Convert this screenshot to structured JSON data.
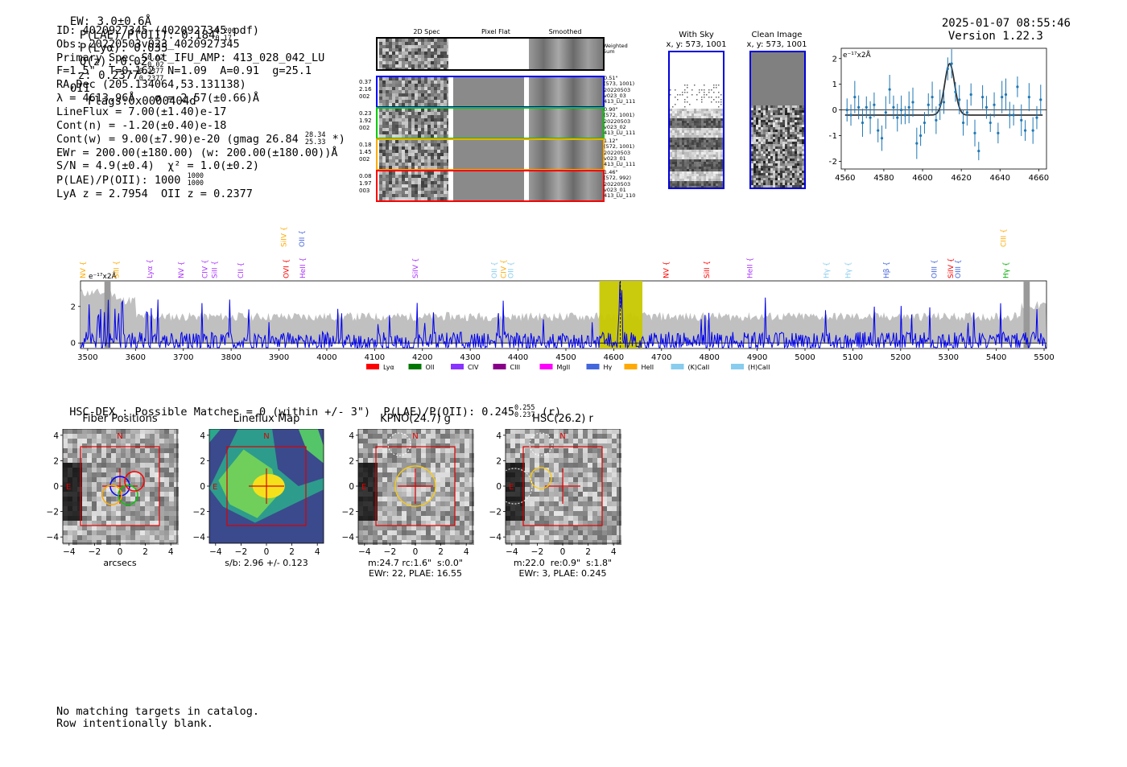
{
  "header": {
    "ew": "EW: 3.0±0.6Å",
    "plae_label": "P(LAE)/P(OII): 0.184",
    "plae_hi": "0.206",
    "plae_lo": "0.17",
    "plya": "P(Lyα): 0.035",
    "q_label": "Q(z): 0.02",
    "q_hi": "0.02",
    "q_lo": "0.02",
    "z_label": "z: 0.2377",
    "z_hi": "0.2377",
    "z_lo": "0.2377",
    "z_type": "OII",
    "flags": "Flags:0x0000404d",
    "timestamp": "2025-01-07 08:55:46",
    "version": "Version 1.22.3"
  },
  "info": {
    "id": "ID: 4020927345 (4020927345.pdf)",
    "obs": "Obs: 20220503v023_4020927345",
    "spec": "Primary Spec_Slot_IFU_AMP: 413_028_042_LU",
    "fiber": "F=1.5\"  T=0.162  N=1.09  A=0.91  g=25.1",
    "radec": "RA,Dec (205.134064,53.131138)",
    "lambda": "λ = 4613.96Å   σ = 2.57(±0.66)Å",
    "lineflux": "LineFlux = 7.00(±1.40)e-17",
    "contn": "Cont(n) = -1.20(±0.40)e-18",
    "contw_prefix": "Cont(w) = 9.00(±7.90)e-20 (gmag 26.84",
    "contw_hi": "28.34",
    "contw_lo": "25.33",
    "contw_suffix": "*)",
    "ewr": "EWr = 200.00(±180.00) (w: 200.00(±180.00))Å",
    "sn": "S/N = 4.9(±0.4)  χ² = 1.0(±0.2)",
    "plae_prefix": "P(LAE)/P(OII): 1000",
    "plae_hi": "1000",
    "plae_lo": "1000",
    "lya_z": "LyA z = 2.7954  OII z = 0.2377"
  },
  "stamps": {
    "col_headers": [
      "2D Spec",
      "Pixel Flat",
      "Smoothed"
    ],
    "weighted_label": "Weighted\nSum",
    "rows": [
      {
        "left": "0.37\n2.16\n002",
        "right": "0.51\"\n(573, 1001)\n20220503\nv023_03\n413_LU_111",
        "color": "#0000ff"
      },
      {
        "left": "0.23\n1.92\n002",
        "right": "0.90\"\n(572, 1001)\n20220503\nv023_02\n413_LU_111",
        "color": "#00cc00"
      },
      {
        "left": "0.18\n1.45\n002",
        "right": "1.12\"\n(572, 1001)\n20220503\nv023_01\n413_LU_111",
        "color": "#ffaa00"
      },
      {
        "left": "0.08\n1.97\n003",
        "right": "1.46\"\n(572, 992)\n20220503\nv023_01\n413_LU_110",
        "color": "#ff0000"
      }
    ]
  },
  "sky_panels": {
    "with_sky": "With Sky\nx, y: 573, 1001",
    "clean": "Clean Image\nx, y: 573, 1001"
  },
  "zoom_plot": {
    "y_unit": "e⁻¹⁷x2Å",
    "xticks": [
      "4560",
      "4580",
      "4600",
      "4620",
      "4640",
      "4660"
    ],
    "yticks": [
      "2",
      "1",
      "0",
      "−1",
      "−2"
    ],
    "x": [
      4561,
      4563,
      4565,
      4567,
      4569,
      4571,
      4573,
      4575,
      4577,
      4579,
      4581,
      4583,
      4585,
      4587,
      4589,
      4591,
      4593,
      4595,
      4597,
      4599,
      4601,
      4603,
      4605,
      4607,
      4609,
      4611,
      4613,
      4615,
      4617,
      4619,
      4621,
      4623,
      4625,
      4627,
      4629,
      4631,
      4633,
      4635,
      4637,
      4639,
      4641,
      4643,
      4645,
      4647,
      4649,
      4651,
      4653,
      4655,
      4657,
      4659,
      4661
    ],
    "y": [
      0.0,
      -0.2,
      0.5,
      0.1,
      -0.5,
      0.1,
      -0.3,
      0.2,
      -0.8,
      -1.1,
      -0.1,
      0.8,
      0.1,
      -0.3,
      0.0,
      -0.2,
      0.1,
      0.3,
      -1.3,
      -1.0,
      -0.5,
      0.2,
      0.5,
      -0.4,
      0.2,
      0.3,
      1.6,
      1.8,
      0.7,
      0.4,
      -0.5,
      -0.1,
      0.6,
      -0.9,
      -1.6,
      0.5,
      0.1,
      -0.5,
      0.2,
      -0.9,
      0.5,
      0.6,
      -0.2,
      -0.2,
      0.9,
      -0.4,
      -0.8,
      0.5,
      -0.8,
      -0.3,
      0.4
    ],
    "fit_center": 4614,
    "fit_sigma": 2.57,
    "fit_amp": 2.0,
    "fit_base": -0.2
  },
  "full_spec": {
    "y_unit": "e⁻¹⁷x2Å",
    "xticks": [
      "3500",
      "3600",
      "3700",
      "3800",
      "3900",
      "4000",
      "4100",
      "4200",
      "4300",
      "4400",
      "4500",
      "4600",
      "4700",
      "4800",
      "4900",
      "5000",
      "5100",
      "5200",
      "5300",
      "5400",
      "5500"
    ],
    "yticks": [
      "2",
      "0"
    ],
    "line_marks": [
      {
        "name": "NV",
        "wave": 3490,
        "color": "#ffaa00"
      },
      {
        "name": "SiII",
        "wave": 3560,
        "color": "#ffaa00"
      },
      {
        "name": "Lyα",
        "wave": 3630,
        "color": "#aa33ff"
      },
      {
        "name": "NV",
        "wave": 3695,
        "color": "#aa33ff"
      },
      {
        "name": "CIV",
        "wave": 3745,
        "color": "#aa33ff"
      },
      {
        "name": "SiII",
        "wave": 3765,
        "color": "#aa33ff"
      },
      {
        "name": "CII",
        "wave": 3820,
        "color": "#aa33ff"
      },
      {
        "name": "OVI",
        "wave": 3915,
        "color": "#ff0000"
      },
      {
        "name": "HeII",
        "wave": 3950,
        "color": "#aa33ff"
      },
      {
        "name": "SiIV",
        "wave": 4185,
        "color": "#aa33ff"
      },
      {
        "name": "OII",
        "wave": 4350,
        "color": "#88ccee"
      },
      {
        "name": "CIV",
        "wave": 4370,
        "color": "#ffaa00"
      },
      {
        "name": "OII",
        "wave": 4385,
        "color": "#88ccee"
      },
      {
        "name": "NV",
        "wave": 4710,
        "color": "#ff0000"
      },
      {
        "name": "SiII",
        "wave": 4795,
        "color": "#ff0000"
      },
      {
        "name": "HeII",
        "wave": 4885,
        "color": "#aa33ff"
      },
      {
        "name": "Hγ",
        "wave": 5045,
        "color": "#88ccee"
      },
      {
        "name": "Hγ",
        "wave": 5090,
        "color": "#88ccee"
      },
      {
        "name": "Hβ",
        "wave": 5170,
        "color": "#4466dd"
      },
      {
        "name": "OIII",
        "wave": 5270,
        "color": "#4466dd"
      },
      {
        "name": "SiIV",
        "wave": 5305,
        "color": "#ff0000"
      },
      {
        "name": "OIII",
        "wave": 5320,
        "color": "#4466dd"
      },
      {
        "name": "Hγ",
        "wave": 5420,
        "color": "#00aa00"
      }
    ],
    "upper_marks": [
      {
        "name": "SiIV",
        "wave": 3910,
        "color": "#ffaa00"
      },
      {
        "name": "OII",
        "wave": 3948,
        "color": "#4466dd"
      },
      {
        "name": "CIII",
        "wave": 5415,
        "color": "#ffaa00"
      }
    ],
    "highlight_range": [
      4570,
      4660
    ],
    "emission_wave": 4614,
    "legend": [
      {
        "label": "Lyα",
        "color": "#ff0000"
      },
      {
        "label": "OII",
        "color": "#007700"
      },
      {
        "label": "CIV",
        "color": "#8833ff"
      },
      {
        "label": "CIII",
        "color": "#880088"
      },
      {
        "label": "MgII",
        "color": "#ff00ff"
      },
      {
        "label": "Hγ",
        "color": "#4466dd"
      },
      {
        "label": "HeII",
        "color": "#ffaa00"
      },
      {
        "label": "(K)CaII",
        "color": "#88ccee"
      },
      {
        "label": "(H)CaII",
        "color": "#88ccee"
      }
    ]
  },
  "hsc": {
    "title_prefix": "HSC-DEX : Possible Matches = 0 (within +/- 3\")  P(LAE)/P(OII): 0.245",
    "title_hi": "0.255",
    "title_lo": "0.237",
    "title_suffix": "(r)"
  },
  "cutouts": [
    {
      "title": "Fiber Positions",
      "caption": "arcsecs",
      "compass_n": "N",
      "compass_e": "E"
    },
    {
      "title": "Lineflux Map",
      "caption": "s/b: 2.96 +/- 0.123",
      "compass_n": "N",
      "compass_e": "E"
    },
    {
      "title": "KPNO(24.7) g",
      "caption": "m:24.7 rc:1.6\"  s:0.0\"\nEWr: 22, PLAE: 16.55",
      "compass_n": "N",
      "compass_e": "E"
    },
    {
      "title": "HSC(26.2) r",
      "caption": "m:22.0  re:0.9\"  s:1.8\"\nEWr: 3, PLAE: 0.245",
      "compass_n": "N",
      "compass_e": "E"
    }
  ],
  "cutout_ticks": {
    "x": [
      "−4",
      "−2",
      "0",
      "2",
      "4"
    ],
    "y": [
      "4",
      "2",
      "0",
      "−2",
      "−4"
    ]
  },
  "footer": {
    "line1": "No matching targets in catalog.",
    "line2": "Row intentionally blank."
  }
}
